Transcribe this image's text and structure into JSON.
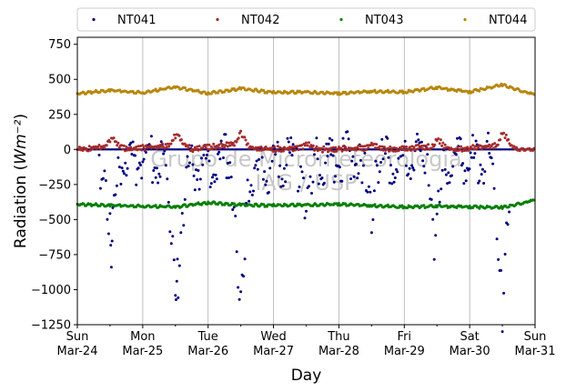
{
  "chart_data": {
    "type": "scatter",
    "title": "",
    "xlabel": "Day",
    "ylabel": "Radiation (Wm⁻²)",
    "ylim": [
      -1250,
      800
    ],
    "xlim": [
      "2024-03-24",
      "2024-03-31"
    ],
    "y_ticks": [
      -1250,
      -1000,
      -750,
      -500,
      -250,
      0,
      250,
      500,
      750
    ],
    "x_ticks": [
      {
        "day": "Sun",
        "date": "Mar-24"
      },
      {
        "day": "Mon",
        "date": "Mar-25"
      },
      {
        "day": "Tue",
        "date": "Mar-26"
      },
      {
        "day": "Wed",
        "date": "Mar-27"
      },
      {
        "day": "Thu",
        "date": "Mar-28"
      },
      {
        "day": "Fri",
        "date": "Mar-29"
      },
      {
        "day": "Sat",
        "date": "Mar-30"
      },
      {
        "day": "Sun",
        "date": "Mar-31"
      }
    ],
    "grid": "vertical",
    "legend_position": "top",
    "watermark": "Grupo de Micrometeorologia IAG / USP",
    "series": [
      {
        "name": "NT041",
        "color": "#00007f",
        "points": [
          [
            "2024-03-24 08:00",
            -40
          ],
          [
            "2024-03-24 09:00",
            -180
          ],
          [
            "2024-03-24 10:00",
            -330
          ],
          [
            "2024-03-24 11:00",
            -450
          ],
          [
            "2024-03-24 12:00",
            -600
          ],
          [
            "2024-03-24 12:30",
            -830
          ],
          [
            "2024-03-24 13:00",
            -420
          ],
          [
            "2024-03-24 14:00",
            -300
          ],
          [
            "2024-03-24 15:00",
            -180
          ],
          [
            "2024-03-24 16:00",
            -80
          ],
          [
            "2024-03-25 08:00",
            -60
          ],
          [
            "2024-03-25 09:00",
            -250
          ],
          [
            "2024-03-25 10:00",
            -500
          ],
          [
            "2024-03-25 11:00",
            -750
          ],
          [
            "2024-03-25 12:00",
            -950
          ],
          [
            "2024-03-25 12:30",
            -1010
          ],
          [
            "2024-03-25 13:00",
            -880
          ],
          [
            "2024-03-25 14:00",
            -650
          ],
          [
            "2024-03-25 15:00",
            -400
          ],
          [
            "2024-03-25 16:00",
            -150
          ],
          [
            "2024-03-26 08:00",
            -50
          ],
          [
            "2024-03-26 09:00",
            -300
          ],
          [
            "2024-03-26 10:00",
            -600
          ],
          [
            "2024-03-26 11:00",
            -900
          ],
          [
            "2024-03-26 12:00",
            -1120
          ],
          [
            "2024-03-26 13:00",
            -850
          ],
          [
            "2024-03-26 14:00",
            -500
          ],
          [
            "2024-03-26 15:00",
            -200
          ],
          [
            "2024-03-27 08:00",
            -40
          ],
          [
            "2024-03-27 09:00",
            -120
          ],
          [
            "2024-03-27 10:00",
            -250
          ],
          [
            "2024-03-27 11:00",
            -320
          ],
          [
            "2024-03-27 12:00",
            -300
          ],
          [
            "2024-03-27 13:00",
            -340
          ],
          [
            "2024-03-27 14:00",
            -200
          ],
          [
            "2024-03-27 15:00",
            -100
          ],
          [
            "2024-03-28 08:00",
            -30
          ],
          [
            "2024-03-28 09:00",
            -150
          ],
          [
            "2024-03-28 10:00",
            -250
          ],
          [
            "2024-03-28 11:00",
            -300
          ],
          [
            "2024-03-28 12:00",
            -480
          ],
          [
            "2024-03-28 13:00",
            -260
          ],
          [
            "2024-03-28 14:00",
            -200
          ],
          [
            "2024-03-28 15:00",
            -80
          ],
          [
            "2024-03-29 08:00",
            -40
          ],
          [
            "2024-03-29 09:00",
            -200
          ],
          [
            "2024-03-29 10:00",
            -420
          ],
          [
            "2024-03-29 11:00",
            -700
          ],
          [
            "2024-03-29 12:00",
            -520
          ],
          [
            "2024-03-29 13:00",
            -350
          ],
          [
            "2024-03-29 14:00",
            -200
          ],
          [
            "2024-03-29 15:00",
            -80
          ],
          [
            "2024-03-30 08:00",
            -60
          ],
          [
            "2024-03-30 09:00",
            -300
          ],
          [
            "2024-03-30 10:00",
            -550
          ],
          [
            "2024-03-30 11:00",
            -900
          ],
          [
            "2024-03-30 12:00",
            -1180
          ],
          [
            "2024-03-30 13:00",
            -800
          ],
          [
            "2024-03-30 14:00",
            -450
          ],
          [
            "2024-03-30 15:00",
            -150
          ]
        ]
      },
      {
        "name": "NT042",
        "color": "#a52a2a",
        "points": [
          [
            "2024-03-24 00:00",
            0
          ],
          [
            "2024-03-24 10:00",
            20
          ],
          [
            "2024-03-24 12:00",
            60
          ],
          [
            "2024-03-24 13:00",
            80
          ],
          [
            "2024-03-24 15:00",
            30
          ],
          [
            "2024-03-24 18:00",
            0
          ],
          [
            "2024-03-25 10:00",
            30
          ],
          [
            "2024-03-25 12:00",
            100
          ],
          [
            "2024-03-25 13:00",
            110
          ],
          [
            "2024-03-25 15:00",
            40
          ],
          [
            "2024-03-25 18:00",
            0
          ],
          [
            "2024-03-26 10:00",
            40
          ],
          [
            "2024-03-26 12:00",
            120
          ],
          [
            "2024-03-26 13:00",
            90
          ],
          [
            "2024-03-26 15:00",
            20
          ],
          [
            "2024-03-26 18:00",
            0
          ],
          [
            "2024-03-27 10:00",
            10
          ],
          [
            "2024-03-27 12:00",
            40
          ],
          [
            "2024-03-27 13:00",
            30
          ],
          [
            "2024-03-27 15:00",
            10
          ],
          [
            "2024-03-27 18:00",
            0
          ],
          [
            "2024-03-28 10:00",
            10
          ],
          [
            "2024-03-28 12:00",
            40
          ],
          [
            "2024-03-28 13:00",
            35
          ],
          [
            "2024-03-28 15:00",
            10
          ],
          [
            "2024-03-28 18:00",
            0
          ],
          [
            "2024-03-29 10:00",
            20
          ],
          [
            "2024-03-29 12:00",
            70
          ],
          [
            "2024-03-29 13:00",
            60
          ],
          [
            "2024-03-29 15:00",
            20
          ],
          [
            "2024-03-29 18:00",
            0
          ],
          [
            "2024-03-30 10:00",
            30
          ],
          [
            "2024-03-30 12:00",
            120
          ],
          [
            "2024-03-30 13:00",
            100
          ],
          [
            "2024-03-30 15:00",
            30
          ],
          [
            "2024-03-30 18:00",
            0
          ],
          [
            "2024-03-31 00:00",
            0
          ]
        ]
      },
      {
        "name": "NT043",
        "color": "#007f00",
        "points": [
          [
            "2024-03-24 00:00",
            -390
          ],
          [
            "2024-03-24 12:00",
            -400
          ],
          [
            "2024-03-25 00:00",
            -405
          ],
          [
            "2024-03-25 12:00",
            -410
          ],
          [
            "2024-03-26 00:00",
            -380
          ],
          [
            "2024-03-26 12:00",
            -395
          ],
          [
            "2024-03-27 00:00",
            -400
          ],
          [
            "2024-03-27 12:00",
            -395
          ],
          [
            "2024-03-28 00:00",
            -390
          ],
          [
            "2024-03-28 12:00",
            -400
          ],
          [
            "2024-03-29 00:00",
            -410
          ],
          [
            "2024-03-29 12:00",
            -405
          ],
          [
            "2024-03-30 00:00",
            -410
          ],
          [
            "2024-03-30 12:00",
            -415
          ],
          [
            "2024-03-31 00:00",
            -360
          ]
        ]
      },
      {
        "name": "NT044",
        "color": "#b8860b",
        "points": [
          [
            "2024-03-24 00:00",
            400
          ],
          [
            "2024-03-24 12:00",
            420
          ],
          [
            "2024-03-25 00:00",
            405
          ],
          [
            "2024-03-25 12:00",
            445
          ],
          [
            "2024-03-26 00:00",
            400
          ],
          [
            "2024-03-26 12:00",
            435
          ],
          [
            "2024-03-27 00:00",
            405
          ],
          [
            "2024-03-27 12:00",
            410
          ],
          [
            "2024-03-28 00:00",
            400
          ],
          [
            "2024-03-28 12:00",
            415
          ],
          [
            "2024-03-29 00:00",
            410
          ],
          [
            "2024-03-29 12:00",
            440
          ],
          [
            "2024-03-30 00:00",
            410
          ],
          [
            "2024-03-30 12:00",
            460
          ],
          [
            "2024-03-31 00:00",
            390
          ]
        ]
      }
    ]
  }
}
